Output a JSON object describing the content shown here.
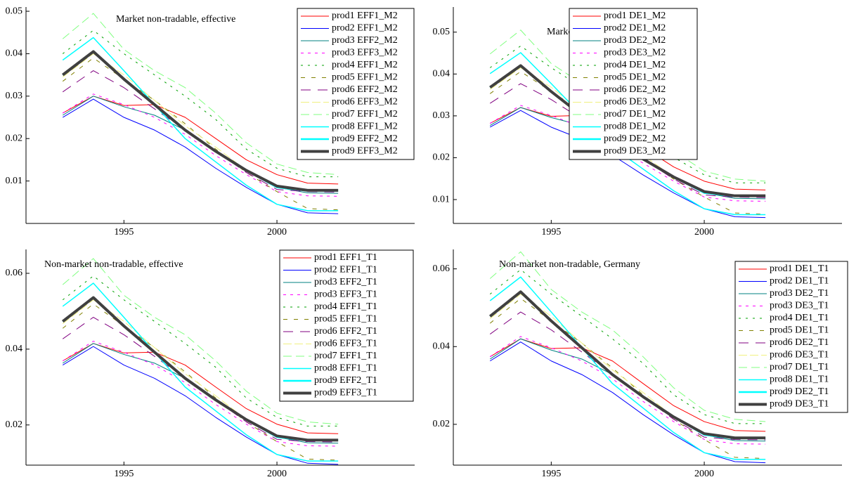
{
  "chart_data": [
    {
      "type": "line",
      "title": "Market non-tradable, effective",
      "x": [
        1993,
        1994,
        1995,
        1996,
        1997,
        1998,
        1999,
        2000,
        2001,
        2002
      ],
      "xlim": [
        1991.8,
        2004.5
      ],
      "xticks": [
        1995,
        2000
      ],
      "ylim": [
        0,
        0.051
      ],
      "yticks": [
        0.01,
        0.02,
        0.03,
        0.04,
        0.05
      ],
      "series": [
        {
          "name": "prod1 EFF1_M2",
          "color": "#ff0000",
          "values": [
            0.026,
            0.03,
            0.0278,
            0.028,
            0.025,
            0.02,
            0.015,
            0.0115,
            0.0095,
            0.0093
          ]
        },
        {
          "name": "prod2 EFF1_M2",
          "color": "#0000ff",
          "values": [
            0.025,
            0.0293,
            0.025,
            0.022,
            0.018,
            0.013,
            0.0085,
            0.0045,
            0.0025,
            0.0023
          ]
        },
        {
          "name": "prod3 EFF2_M2",
          "color": "#008080",
          "values": [
            0.0255,
            0.03,
            0.0275,
            0.0255,
            0.022,
            0.017,
            0.0125,
            0.0085,
            0.0072,
            0.0071
          ]
        },
        {
          "name": "prod3 EFF3_M2",
          "color": "#ff00ff",
          "values": [
            0.026,
            0.0305,
            0.028,
            0.025,
            0.021,
            0.016,
            0.0115,
            0.0075,
            0.0065,
            0.0064
          ]
        },
        {
          "name": "prod4 EFF1_M2",
          "color": "#00a000",
          "values": [
            0.04,
            0.0455,
            0.04,
            0.035,
            0.03,
            0.0245,
            0.0175,
            0.013,
            0.011,
            0.011
          ]
        },
        {
          "name": "prod5 EFF1_M2",
          "color": "#808000",
          "values": [
            0.0335,
            0.039,
            0.034,
            0.029,
            0.0235,
            0.0175,
            0.012,
            0.0075,
            0.0035,
            0.0032
          ]
        },
        {
          "name": "prod6 EFF2_M2",
          "color": "#800080",
          "values": [
            0.031,
            0.036,
            0.032,
            0.027,
            0.022,
            0.017,
            0.012,
            0.008,
            0.0075,
            0.0074
          ]
        },
        {
          "name": "prod6 EFF3_M2",
          "color": "#f0f080",
          "values": [
            0.0345,
            0.04,
            0.035,
            0.029,
            0.023,
            0.018,
            0.0125,
            0.0085,
            0.0078,
            0.0077
          ]
        },
        {
          "name": "prod7 EFF1_M2",
          "color": "#80ff80",
          "values": [
            0.0435,
            0.0495,
            0.041,
            0.036,
            0.032,
            0.026,
            0.019,
            0.014,
            0.012,
            0.0115
          ]
        },
        {
          "name": "prod8 EFF1_M2",
          "color": "#00ffff",
          "values": [
            0.0385,
            0.0438,
            0.036,
            0.028,
            0.02,
            0.0145,
            0.009,
            0.0045,
            0.003,
            0.003
          ]
        },
        {
          "name": "prod9 EFF2_M2",
          "color": "#00ffff",
          "values": [
            0.035,
            0.0405,
            0.034,
            0.028,
            0.022,
            0.017,
            0.0125,
            0.0085,
            0.0077,
            0.0077
          ]
        },
        {
          "name": "prod9 EFF3_M2",
          "color": "#404040",
          "values": [
            0.035,
            0.0405,
            0.034,
            0.028,
            0.022,
            0.017,
            0.0125,
            0.0088,
            0.0078,
            0.0078
          ]
        }
      ]
    },
    {
      "type": "line",
      "title": "Market non-tradable, Germany",
      "x": [
        1993,
        1994,
        1995,
        1996,
        1997,
        1998,
        1999,
        2000,
        2001,
        2002
      ],
      "xlim": [
        1991.8,
        2004.5
      ],
      "xticks": [
        1995,
        2000
      ],
      "ylim": [
        0.0043,
        0.056
      ],
      "yticks": [
        0.01,
        0.02,
        0.03,
        0.04,
        0.05
      ],
      "series": [
        {
          "name": "prod1 DE1_M2",
          "color": "#ff0000",
          "values": [
            0.0282,
            0.032,
            0.0299,
            0.0301,
            0.0273,
            0.0225,
            0.0178,
            0.0144,
            0.0125,
            0.0123
          ]
        },
        {
          "name": "prod2 DE1_M2",
          "color": "#0000ff",
          "values": [
            0.0273,
            0.0313,
            0.0273,
            0.0244,
            0.0206,
            0.0159,
            0.0116,
            0.0078,
            0.0059,
            0.0057
          ]
        },
        {
          "name": "prod3 DE2_M2",
          "color": "#008080",
          "values": [
            0.0277,
            0.032,
            0.0296,
            0.0277,
            0.0244,
            0.0197,
            0.0154,
            0.0116,
            0.0103,
            0.0102
          ]
        },
        {
          "name": "prod3 DE3_M2",
          "color": "#ff00ff",
          "values": [
            0.0282,
            0.0325,
            0.0301,
            0.0273,
            0.0235,
            0.0187,
            0.0144,
            0.0106,
            0.0097,
            0.0096
          ]
        },
        {
          "name": "prod4 DE1_M2",
          "color": "#00a000",
          "values": [
            0.0415,
            0.0467,
            0.0415,
            0.0368,
            0.032,
            0.0268,
            0.0201,
            0.0159,
            0.014,
            0.014
          ]
        },
        {
          "name": "prod5 DE1_M2",
          "color": "#808000",
          "values": [
            0.0353,
            0.0406,
            0.0358,
            0.0311,
            0.0258,
            0.0201,
            0.0149,
            0.0106,
            0.0068,
            0.0065
          ]
        },
        {
          "name": "prod6 DE2_M2",
          "color": "#800080",
          "values": [
            0.033,
            0.0377,
            0.0339,
            0.0292,
            0.0244,
            0.0197,
            0.0149,
            0.0111,
            0.0106,
            0.0105
          ]
        },
        {
          "name": "prod6 DE3_M2",
          "color": "#f0f080",
          "values": [
            0.0363,
            0.0415,
            0.0368,
            0.0311,
            0.0254,
            0.0206,
            0.0154,
            0.0116,
            0.0109,
            0.0108
          ]
        },
        {
          "name": "prod7 DE1_M2",
          "color": "#80ff80",
          "values": [
            0.0448,
            0.0505,
            0.0425,
            0.0377,
            0.0339,
            0.0282,
            0.0216,
            0.0168,
            0.0149,
            0.0144
          ]
        },
        {
          "name": "prod8 DE1_M2",
          "color": "#00ffff",
          "values": [
            0.0401,
            0.0451,
            0.0377,
            0.0301,
            0.0225,
            0.0173,
            0.0121,
            0.0078,
            0.0064,
            0.0064
          ]
        },
        {
          "name": "prod9 DE2_M2",
          "color": "#00ffff",
          "values": [
            0.0368,
            0.042,
            0.0358,
            0.0301,
            0.0244,
            0.0197,
            0.0154,
            0.0116,
            0.0108,
            0.0108
          ]
        },
        {
          "name": "prod9 DE3_M2",
          "color": "#404040",
          "values": [
            0.0368,
            0.042,
            0.0358,
            0.0301,
            0.0244,
            0.0197,
            0.0154,
            0.0119,
            0.0109,
            0.0109
          ]
        }
      ]
    },
    {
      "type": "line",
      "title": "Non-market non-tradable, effective",
      "x": [
        1993,
        1994,
        1995,
        1996,
        1997,
        1998,
        1999,
        2000,
        2001,
        2002
      ],
      "xlim": [
        1991.8,
        2004.5
      ],
      "xticks": [
        1995,
        2000
      ],
      "ylim": [
        0.0094,
        0.0663
      ],
      "yticks": [
        0.02,
        0.04,
        0.06
      ],
      "series": [
        {
          "name": "prod1 EFF1_T1",
          "color": "#ff0000",
          "values": [
            0.0369,
            0.0415,
            0.039,
            0.0392,
            0.0358,
            0.03,
            0.0243,
            0.0202,
            0.0179,
            0.0177
          ]
        },
        {
          "name": "prod2 EFF1_T1",
          "color": "#0000ff",
          "values": [
            0.0358,
            0.0407,
            0.0358,
            0.0323,
            0.0277,
            0.022,
            0.0168,
            0.0122,
            0.0099,
            0.0096
          ]
        },
        {
          "name": "prod3 EFF2_T1",
          "color": "#008080",
          "values": [
            0.0363,
            0.0415,
            0.0386,
            0.0363,
            0.0323,
            0.0266,
            0.0214,
            0.0168,
            0.0153,
            0.0152
          ]
        },
        {
          "name": "prod3 EFF3_T1",
          "color": "#ff00ff",
          "values": [
            0.0369,
            0.0421,
            0.0392,
            0.0358,
            0.0312,
            0.0254,
            0.0202,
            0.0156,
            0.0145,
            0.0144
          ]
        },
        {
          "name": "prod4 EFF1_T1",
          "color": "#00a000",
          "values": [
            0.053,
            0.0593,
            0.053,
            0.0473,
            0.0415,
            0.0352,
            0.0271,
            0.022,
            0.0197,
            0.0197
          ]
        },
        {
          "name": "prod5 EFF1_T1",
          "color": "#808000",
          "values": [
            0.0455,
            0.0519,
            0.0461,
            0.0404,
            0.034,
            0.0271,
            0.0208,
            0.0156,
            0.011,
            0.0107
          ]
        },
        {
          "name": "prod6 EFF2_T1",
          "color": "#800080",
          "values": [
            0.0427,
            0.0484,
            0.0438,
            0.0381,
            0.0323,
            0.0266,
            0.0208,
            0.0162,
            0.0156,
            0.0155
          ]
        },
        {
          "name": "prod6 EFF3_T1",
          "color": "#f0f080",
          "values": [
            0.0467,
            0.053,
            0.0473,
            0.0404,
            0.0335,
            0.0277,
            0.0214,
            0.0168,
            0.016,
            0.0159
          ]
        },
        {
          "name": "prod7 EFF1_T1",
          "color": "#80ff80",
          "values": [
            0.057,
            0.0639,
            0.0542,
            0.0484,
            0.0438,
            0.0369,
            0.0289,
            0.0231,
            0.0208,
            0.0202
          ]
        },
        {
          "name": "prod8 EFF1_T1",
          "color": "#00ffff",
          "values": [
            0.0513,
            0.0574,
            0.0484,
            0.0392,
            0.03,
            0.0237,
            0.0174,
            0.0122,
            0.0105,
            0.0105
          ]
        },
        {
          "name": "prod9 EFF2_T1",
          "color": "#00ffff",
          "values": [
            0.0473,
            0.0536,
            0.0461,
            0.0392,
            0.0323,
            0.0266,
            0.0214,
            0.0168,
            0.0159,
            0.0159
          ]
        },
        {
          "name": "prod9 EFF3_T1",
          "color": "#404040",
          "values": [
            0.0473,
            0.0536,
            0.0461,
            0.0392,
            0.0323,
            0.0266,
            0.0214,
            0.0171,
            0.016,
            0.016
          ]
        }
      ]
    },
    {
      "type": "line",
      "title": "Non-market non-tradable, Germany",
      "x": [
        1993,
        1994,
        1995,
        1996,
        1997,
        1998,
        1999,
        2000,
        2001,
        2002
      ],
      "xlim": [
        1991.8,
        2004.5
      ],
      "xticks": [
        1995,
        2000
      ],
      "ylim": [
        0.0095,
        0.065
      ],
      "yticks": [
        0.02,
        0.04,
        0.06
      ],
      "series": [
        {
          "name": "prod1 DE1_T1",
          "color": "#ff0000",
          "values": [
            0.0374,
            0.042,
            0.0395,
            0.0397,
            0.0363,
            0.0305,
            0.0248,
            0.0207,
            0.0184,
            0.0182
          ]
        },
        {
          "name": "prod2 DE1_T1",
          "color": "#0000ff",
          "values": [
            0.0363,
            0.0412,
            0.0363,
            0.0328,
            0.0282,
            0.0225,
            0.0173,
            0.0127,
            0.0104,
            0.0101
          ]
        },
        {
          "name": "prod3 DE2_T1",
          "color": "#008080",
          "values": [
            0.0368,
            0.042,
            0.0391,
            0.0368,
            0.0328,
            0.0271,
            0.0219,
            0.0173,
            0.0158,
            0.0157
          ]
        },
        {
          "name": "prod3 DE3_T1",
          "color": "#ff00ff",
          "values": [
            0.0374,
            0.0426,
            0.0397,
            0.0363,
            0.0317,
            0.0259,
            0.0207,
            0.0161,
            0.015,
            0.0149
          ]
        },
        {
          "name": "prod4 DE1_T1",
          "color": "#00a000",
          "values": [
            0.0535,
            0.0598,
            0.0535,
            0.0478,
            0.042,
            0.0357,
            0.0276,
            0.0225,
            0.0202,
            0.0202
          ]
        },
        {
          "name": "prod5 DE1_T1",
          "color": "#808000",
          "values": [
            0.046,
            0.0524,
            0.0466,
            0.0409,
            0.0345,
            0.0276,
            0.0213,
            0.0161,
            0.0115,
            0.0112
          ]
        },
        {
          "name": "prod6 DE2_T1",
          "color": "#800080",
          "values": [
            0.0432,
            0.0489,
            0.0443,
            0.0386,
            0.0328,
            0.0271,
            0.0213,
            0.0167,
            0.0161,
            0.016
          ]
        },
        {
          "name": "prod6 DE3_T1",
          "color": "#f0f080",
          "values": [
            0.0472,
            0.0535,
            0.0478,
            0.0409,
            0.034,
            0.0282,
            0.0219,
            0.0173,
            0.0165,
            0.0164
          ]
        },
        {
          "name": "prod7 DE1_T1",
          "color": "#80ff80",
          "values": [
            0.0575,
            0.0644,
            0.0547,
            0.0489,
            0.0443,
            0.0374,
            0.0294,
            0.0236,
            0.0213,
            0.0207
          ]
        },
        {
          "name": "prod8 DE1_T1",
          "color": "#00ffff",
          "values": [
            0.0518,
            0.0579,
            0.0489,
            0.0397,
            0.0305,
            0.0242,
            0.0179,
            0.0127,
            0.011,
            0.011
          ]
        },
        {
          "name": "prod9 DE2_T1",
          "color": "#00ffff",
          "values": [
            0.0478,
            0.0541,
            0.0466,
            0.0397,
            0.0328,
            0.0271,
            0.0219,
            0.0173,
            0.0164,
            0.0164
          ]
        },
        {
          "name": "prod9 DE3_T1",
          "color": "#404040",
          "values": [
            0.0478,
            0.0541,
            0.0466,
            0.0397,
            0.0328,
            0.0271,
            0.0219,
            0.0176,
            0.0165,
            0.0165
          ]
        }
      ]
    }
  ]
}
